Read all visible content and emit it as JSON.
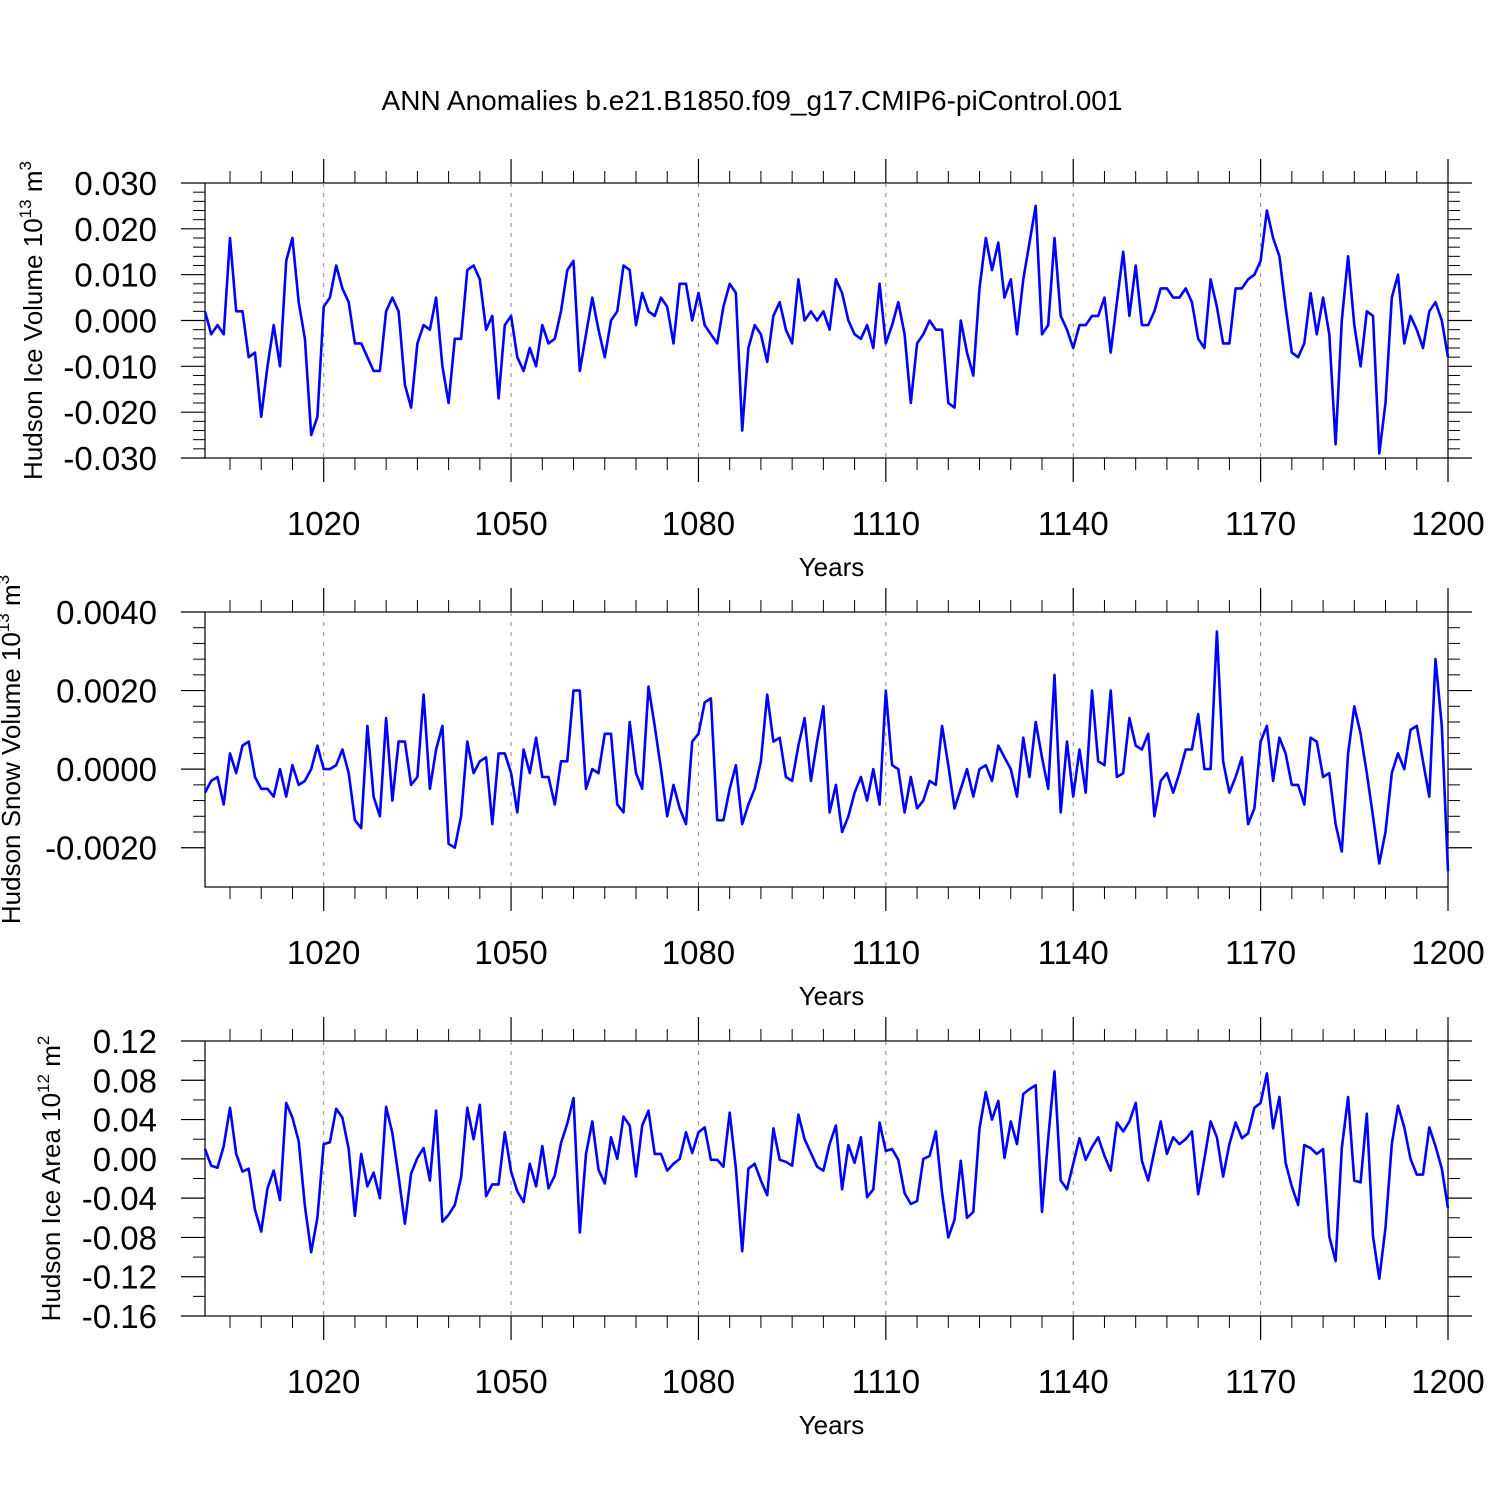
{
  "title": "ANN Anomalies b.e21.B1850.f09_g17.CMIP6-piControl.001",
  "chart_data": [
    {
      "type": "line",
      "ylabel": {
        "text": "Hudson Ice Volume 10",
        "sup": "13",
        "unit": " m",
        "unit_sup": "3"
      },
      "xlabel": "Years",
      "xlim": [
        1001,
        1200
      ],
      "ylim": [
        -0.03,
        0.03
      ],
      "xticks": [
        1020,
        1050,
        1080,
        1110,
        1140,
        1170,
        1200
      ],
      "xtick_labels": [
        "1020",
        "1050",
        "1080",
        "1110",
        "1140",
        "1170",
        "1200"
      ],
      "yticks": [
        -0.03,
        -0.02,
        -0.01,
        0.0,
        0.01,
        0.02,
        0.03
      ],
      "ytick_labels": [
        "-0.030",
        "-0.020",
        "-0.010",
        "0.000",
        "0.010",
        "0.020",
        "0.030"
      ],
      "grid": "vertical dashed",
      "line_color": "#0000ff",
      "series": [
        {
          "x_start": 1001,
          "values": [
            0.002,
            -0.003,
            -0.001,
            -0.003,
            0.018,
            0.002,
            0.002,
            -0.008,
            -0.007,
            -0.021,
            -0.01,
            -0.001,
            -0.01,
            0.013,
            0.018,
            0.004,
            -0.004,
            -0.025,
            -0.021,
            0.003,
            0.005,
            0.012,
            0.007,
            0.004,
            -0.005,
            -0.005,
            -0.008,
            -0.011,
            -0.011,
            0.002,
            0.005,
            0.002,
            -0.014,
            -0.019,
            -0.005,
            -0.001,
            -0.002,
            0.005,
            -0.01,
            -0.018,
            -0.004,
            -0.004,
            0.011,
            0.012,
            0.009,
            -0.002,
            0.001,
            -0.017,
            -0.001,
            0.001,
            -0.008,
            -0.011,
            -0.006,
            -0.01,
            -0.001,
            -0.005,
            -0.004,
            0.002,
            0.011,
            0.013,
            -0.011,
            -0.003,
            0.005,
            -0.002,
            -0.008,
            0.0,
            0.002,
            0.012,
            0.011,
            -0.001,
            0.006,
            0.002,
            0.001,
            0.005,
            0.003,
            -0.005,
            0.008,
            0.008,
            0.0,
            0.006,
            -0.001,
            -0.003,
            -0.005,
            0.003,
            0.008,
            0.006,
            -0.024,
            -0.006,
            -0.001,
            -0.003,
            -0.009,
            0.001,
            0.004,
            -0.002,
            -0.005,
            0.009,
            0.0,
            0.002,
            0.0,
            0.002,
            -0.002,
            0.009,
            0.006,
            0.0,
            -0.003,
            -0.004,
            -0.001,
            -0.006,
            0.008,
            -0.005,
            -0.001,
            0.004,
            -0.003,
            -0.018,
            -0.005,
            -0.003,
            0.0,
            -0.002,
            -0.002,
            -0.018,
            -0.019,
            0.0,
            -0.007,
            -0.012,
            0.007,
            0.018,
            0.011,
            0.017,
            0.005,
            0.009,
            -0.003,
            0.009,
            0.017,
            0.025,
            -0.003,
            -0.001,
            0.018,
            0.001,
            -0.002,
            -0.006,
            -0.001,
            -0.001,
            0.001,
            0.001,
            0.005,
            -0.007,
            0.004,
            0.015,
            0.001,
            0.012,
            -0.001,
            -0.001,
            0.002,
            0.007,
            0.007,
            0.005,
            0.005,
            0.007,
            0.004,
            -0.004,
            -0.006,
            0.009,
            0.003,
            -0.005,
            -0.005,
            0.007,
            0.007,
            0.009,
            0.01,
            0.013,
            0.024,
            0.018,
            0.014,
            0.003,
            -0.007,
            -0.008,
            -0.005,
            0.006,
            -0.003,
            0.005,
            -0.003,
            -0.027,
            0.0,
            0.014,
            -0.001,
            -0.01,
            0.002,
            0.001,
            -0.029,
            -0.018,
            0.005,
            0.01,
            -0.005,
            0.001,
            -0.002,
            -0.006,
            0.002,
            0.004,
            0.0,
            -0.008
          ]
        }
      ]
    },
    {
      "type": "line",
      "ylabel": {
        "text": "Hudson Snow Volume 10",
        "sup": "13",
        "unit": " m",
        "unit_sup": "3"
      },
      "xlabel": "Years",
      "xlim": [
        1001,
        1200
      ],
      "ylim": [
        -0.003,
        0.004
      ],
      "xticks": [
        1020,
        1050,
        1080,
        1110,
        1140,
        1170,
        1200
      ],
      "xtick_labels": [
        "1020",
        "1050",
        "1080",
        "1110",
        "1140",
        "1170",
        "1200"
      ],
      "yticks": [
        -0.002,
        0.0,
        0.002,
        0.004
      ],
      "ytick_labels": [
        "-0.0020",
        "0.0000",
        "0.0020",
        "0.0040"
      ],
      "grid": "vertical dashed",
      "line_color": "#0000ff",
      "series": [
        {
          "x_start": 1001,
          "values": [
            -0.0006,
            -0.0003,
            -0.0002,
            -0.0009,
            0.0004,
            -0.0001,
            0.0006,
            0.0007,
            -0.0002,
            -0.0005,
            -0.0005,
            -0.0007,
            0.0,
            -0.0007,
            0.0001,
            -0.0004,
            -0.0003,
            0.0,
            0.0006,
            0.0,
            0.0,
            0.0001,
            0.0005,
            -0.0001,
            -0.0013,
            -0.0015,
            0.0011,
            -0.0007,
            -0.0012,
            0.0013,
            -0.0008,
            0.0007,
            0.0007,
            -0.0004,
            -0.0002,
            0.0019,
            -0.0005,
            0.0005,
            0.0011,
            -0.0019,
            -0.002,
            -0.0012,
            0.0007,
            -0.0001,
            0.0002,
            0.0003,
            -0.0014,
            0.0004,
            0.0004,
            -0.0001,
            -0.0011,
            0.0005,
            -0.0001,
            0.0008,
            -0.0002,
            -0.0002,
            -0.0009,
            0.0002,
            0.0002,
            0.002,
            0.002,
            -0.0005,
            0.0,
            -0.0001,
            0.0009,
            0.0009,
            -0.0009,
            -0.0011,
            0.0012,
            -0.0001,
            -0.0005,
            0.0021,
            0.0011,
            0.0,
            -0.0012,
            -0.0004,
            -0.001,
            -0.0014,
            0.0007,
            0.0009,
            0.0017,
            0.0018,
            -0.0013,
            -0.0013,
            -0.0005,
            0.0001,
            -0.0014,
            -0.0009,
            -0.0005,
            0.0002,
            0.0019,
            0.0007,
            0.0008,
            -0.0002,
            -0.0003,
            0.0006,
            0.0013,
            -0.0003,
            0.0007,
            0.0016,
            -0.0011,
            -0.0004,
            -0.0016,
            -0.0012,
            -0.0006,
            -0.0002,
            -0.0008,
            0.0,
            -0.0009,
            0.002,
            0.0001,
            0.0,
            -0.0011,
            -0.0002,
            -0.001,
            -0.0008,
            -0.0003,
            -0.0004,
            0.0011,
            0.0001,
            -0.001,
            -0.0005,
            0.0,
            -0.0007,
            0.0,
            0.0001,
            -0.0003,
            0.0006,
            0.0003,
            0.0,
            -0.0007,
            0.0008,
            -0.0002,
            0.0012,
            0.0003,
            -0.0005,
            0.0024,
            -0.0011,
            0.0007,
            -0.0007,
            0.0005,
            -0.0006,
            0.002,
            0.0002,
            0.0001,
            0.002,
            -0.0002,
            -0.0001,
            0.0013,
            0.0006,
            0.0005,
            0.0009,
            -0.0012,
            -0.0003,
            -0.0001,
            -0.0006,
            -0.0001,
            0.0005,
            0.0005,
            0.0014,
            0.0,
            0.0,
            0.0035,
            0.0002,
            -0.0006,
            -0.0002,
            0.0003,
            -0.0014,
            -0.001,
            0.0007,
            0.0011,
            -0.0003,
            0.0008,
            0.0004,
            -0.0004,
            -0.0004,
            -0.0009,
            0.0008,
            0.0007,
            -0.0002,
            -0.0001,
            -0.0014,
            -0.0021,
            0.0004,
            0.0016,
            0.0009,
            -0.0001,
            -0.0012,
            -0.0024,
            -0.0016,
            -0.0001,
            0.0004,
            0.0,
            0.001,
            0.0011,
            0.0002,
            -0.0007,
            0.0028,
            0.0011,
            -0.0026
          ]
        }
      ]
    },
    {
      "type": "line",
      "ylabel": {
        "text": "Hudson Ice Area 10",
        "sup": "12",
        "unit": " m",
        "unit_sup": "2"
      },
      "xlabel": "Years",
      "xlim": [
        1001,
        1200
      ],
      "ylim": [
        -0.16,
        0.12
      ],
      "xticks": [
        1020,
        1050,
        1080,
        1110,
        1140,
        1170,
        1200
      ],
      "xtick_labels": [
        "1020",
        "1050",
        "1080",
        "1110",
        "1140",
        "1170",
        "1200"
      ],
      "yticks": [
        -0.16,
        -0.12,
        -0.08,
        -0.04,
        0.0,
        0.04,
        0.08,
        0.12
      ],
      "ytick_labels": [
        "-0.16",
        "-0.12",
        "-0.08",
        "-0.04",
        "0.00",
        "0.04",
        "0.08",
        "0.12"
      ],
      "grid": "vertical dashed",
      "line_color": "#0000ff",
      "series": [
        {
          "x_start": 1001,
          "values": [
            0.01,
            -0.007,
            -0.009,
            0.013,
            0.052,
            0.005,
            -0.013,
            -0.01,
            -0.052,
            -0.074,
            -0.03,
            -0.012,
            -0.042,
            0.057,
            0.042,
            0.018,
            -0.048,
            -0.095,
            -0.06,
            0.015,
            0.017,
            0.051,
            0.042,
            0.01,
            -0.058,
            0.005,
            -0.028,
            -0.014,
            -0.04,
            0.053,
            0.026,
            -0.018,
            -0.066,
            -0.015,
            0.001,
            0.011,
            -0.022,
            0.049,
            -0.064,
            -0.057,
            -0.047,
            -0.019,
            0.052,
            0.02,
            0.055,
            -0.038,
            -0.026,
            -0.026,
            0.027,
            -0.013,
            -0.033,
            -0.044,
            -0.005,
            -0.028,
            0.013,
            -0.03,
            -0.017,
            0.016,
            0.036,
            0.062,
            -0.075,
            0.005,
            0.038,
            -0.011,
            -0.025,
            0.022,
            0.0,
            0.043,
            0.034,
            -0.018,
            0.034,
            0.049,
            0.005,
            0.005,
            -0.012,
            -0.005,
            0.0,
            0.027,
            0.006,
            0.027,
            0.032,
            -0.001,
            -0.001,
            -0.008,
            0.047,
            -0.01,
            -0.094,
            -0.01,
            -0.005,
            -0.022,
            -0.037,
            0.031,
            -0.001,
            -0.003,
            -0.007,
            0.045,
            0.02,
            0.006,
            -0.008,
            -0.012,
            0.015,
            0.034,
            -0.031,
            0.014,
            -0.004,
            0.022,
            -0.039,
            -0.031,
            0.037,
            0.008,
            0.01,
            -0.001,
            -0.035,
            -0.046,
            -0.043,
            0.0,
            0.003,
            0.028,
            -0.035,
            -0.08,
            -0.062,
            -0.002,
            -0.06,
            -0.054,
            0.031,
            0.068,
            0.04,
            0.059,
            0.001,
            0.038,
            0.015,
            0.066,
            0.071,
            0.075,
            -0.054,
            0.021,
            0.089,
            -0.022,
            -0.031,
            -0.005,
            0.021,
            -0.001,
            0.012,
            0.022,
            0.003,
            -0.012,
            0.037,
            0.028,
            0.038,
            0.057,
            -0.002,
            -0.022,
            0.008,
            0.038,
            0.005,
            0.022,
            0.015,
            0.02,
            0.028,
            -0.036,
            0.0,
            0.038,
            0.022,
            -0.018,
            0.015,
            0.037,
            0.021,
            0.026,
            0.052,
            0.057,
            0.087,
            0.031,
            0.063,
            -0.004,
            -0.028,
            -0.047,
            0.014,
            0.011,
            0.005,
            0.01,
            -0.079,
            -0.104,
            0.011,
            0.063,
            -0.022,
            -0.024,
            0.046,
            -0.079,
            -0.122,
            -0.07,
            0.015,
            0.054,
            0.032,
            0.0,
            -0.016,
            -0.016,
            0.032,
            0.013,
            -0.01,
            -0.05
          ]
        }
      ]
    }
  ]
}
